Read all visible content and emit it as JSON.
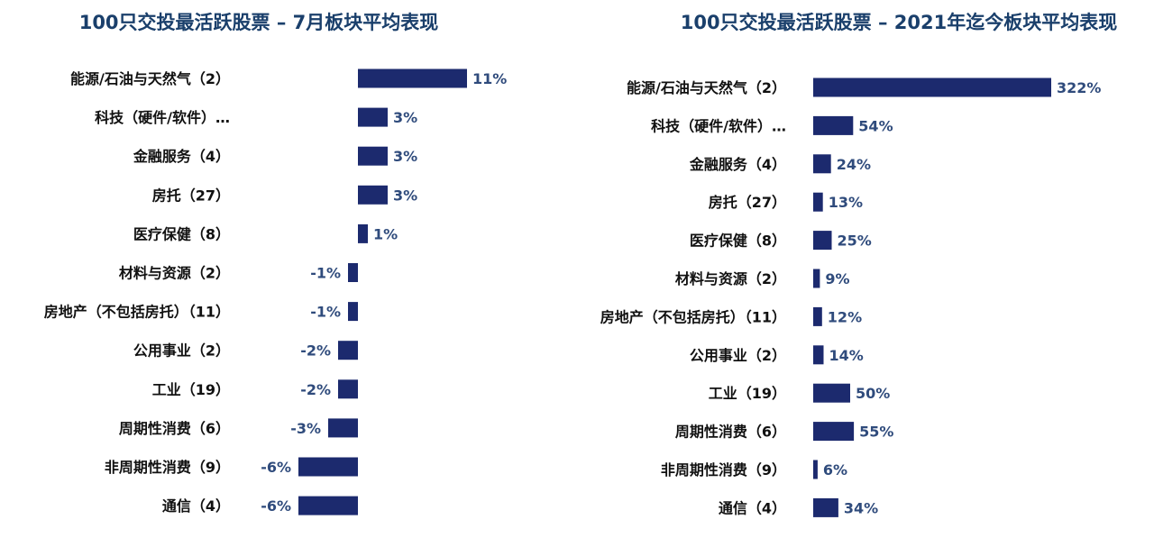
{
  "colors": {
    "bar": "#1c2a6e",
    "title": "#1a3f6b",
    "label": "#111111",
    "value": "#2f4b7c"
  },
  "chart_data": [
    {
      "type": "bar",
      "orientation": "horizontal",
      "title": "100只交投最活跃股票 – 7月板块平均表现",
      "categories": [
        "能源/石油与天然气（2）",
        "科技（硬件/软件）…",
        "金融服务（4）",
        "房托（27）",
        "医疗保健（8）",
        "材料与资源（2）",
        "房地产（不包括房托）（11）",
        "公用事业（2）",
        "工业（19）",
        "周期性消费（6）",
        "非周期性消费（9）",
        "通信（4）"
      ],
      "values": [
        11,
        3,
        3,
        3,
        1,
        -1,
        -1,
        -2,
        -2,
        -3,
        -6,
        -6
      ],
      "value_labels": [
        "11%",
        "3%",
        "3%",
        "3%",
        "1%",
        "-1%",
        "-1%",
        "-2%",
        "-2%",
        "-3%",
        "-6%",
        "-6%"
      ],
      "unit": "%"
    },
    {
      "type": "bar",
      "orientation": "horizontal",
      "title": "100只交投最活跃股票 – 2021年迄今板块平均表现",
      "categories": [
        "能源/石油与天然气（2）",
        "科技（硬件/软件）…",
        "金融服务（4）",
        "房托（27）",
        "医疗保健（8）",
        "材料与资源（2）",
        "房地产（不包括房托）（11）",
        "公用事业（2）",
        "工业（19）",
        "周期性消费（6）",
        "非周期性消费（9）",
        "通信（4）"
      ],
      "values": [
        322,
        54,
        24,
        13,
        25,
        9,
        12,
        14,
        50,
        55,
        6,
        34
      ],
      "value_labels": [
        "322%",
        "54%",
        "24%",
        "13%",
        "25%",
        "9%",
        "12%",
        "14%",
        "50%",
        "55%",
        "6%",
        "34%"
      ],
      "unit": "%"
    }
  ]
}
